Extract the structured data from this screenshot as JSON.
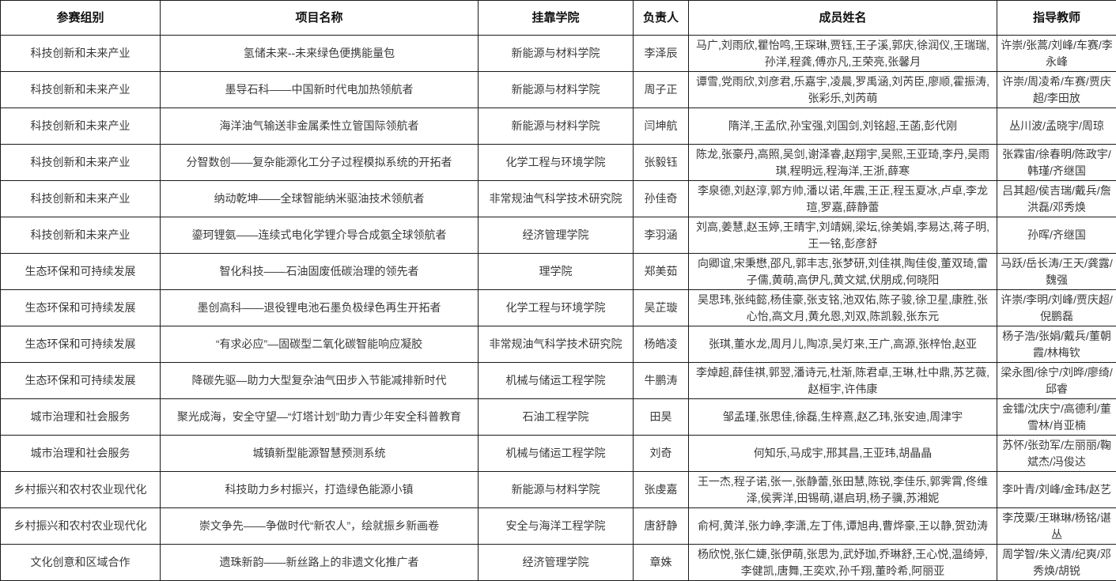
{
  "headers": [
    "参赛组别",
    "项目名称",
    "挂靠学院",
    "负责人",
    "成员姓名",
    "指导教师"
  ],
  "rows": [
    {
      "group": "科技创新和未来产业",
      "project": "氢储未来--未来绿色便携能量包",
      "college": "新能源与材料学院",
      "leader": "李泽辰",
      "members": "马广,刘雨欣,瞿怡鸣,王琛琳,贾钰,王子溪,郭庆,徐润仪,王瑞瑞,孙洋,程龚,傅亦凡,王荣亮,张馨月",
      "advisors": "许崇/张蒿/刘峰/车赛/李永峰"
    },
    {
      "group": "科技创新和未来产业",
      "project": "墨导石科——中国新时代电加热领航者",
      "college": "新能源与材料学院",
      "leader": "周子正",
      "members": "谭雪,党雨欣,刘彦君,乐嘉宇,凌晨,罗禹涵,刘芮臣,廖顺,霍振涛,张彩乐,刘芮萌",
      "advisors": "许崇/周凌希/车赛/贾庆超/李田放"
    },
    {
      "group": "科技创新和未来产业",
      "project": "海洋油气输送非金属柔性立管国际领航者",
      "college": "新能源与材料学院",
      "leader": "闫坤航",
      "members": "隋洋,王孟欣,孙宝强,刘国剑,刘铭超,王菡,彭代刚",
      "advisors": "丛川波/孟晓宇/周琼"
    },
    {
      "group": "科技创新和未来产业",
      "project": "分智数创——复杂能源化工分子过程模拟系统的开拓者",
      "college": "化学工程与环境学院",
      "leader": "张毅钰",
      "members": "陈龙,张豪丹,高照,吴剑,谢泽睿,赵翔宇,吴熙,王亚琦,李丹,吴雨琪,程明远,程海洋,王浙,薛寒",
      "advisors": "张霖宙/徐春明/陈政宇/韩瑾/齐继国"
    },
    {
      "group": "科技创新和未来产业",
      "project": "纳动乾坤——全球智能纳米驱油技术领航者",
      "college": "非常规油气科学技术研究院",
      "leader": "孙佳奇",
      "members": "李泉德,刘赵淳,郭方帅,潘以诺,年震,王正,程玉夏冰,卢卓,李龙瑄,罗嘉,薛静蕾",
      "advisors": "吕其超/侯吉瑞/戴兵/詹洪磊/邓秀焕"
    },
    {
      "group": "科技创新和未来产业",
      "project": "鎏珂锂氨——连续式电化学锂介导合成氨全球领航者",
      "college": "经济管理学院",
      "leader": "李羽涵",
      "members": "刘高,姜慧,赵玉婷,王晴宇,刘靖娴,梁坛,徐美娟,李易达,蒋子明,王一铭,彭彦舒",
      "advisors": "孙晖/齐继国"
    },
    {
      "group": "生态环保和可持续发展",
      "project": "智化科技——石油固废低碳治理的领先者",
      "college": "理学院",
      "leader": "郑美茹",
      "members": "向卿谊,宋秉懋,邵凡,郭丰志,张梦研,刘佳祺,陶佳俊,董双琦,雷子儒,黄萌,高伊凡,黄文斌,伏朋成,何晓阳",
      "advisors": "马跃/岳长涛/王天/龚露/魏强"
    },
    {
      "group": "生态环保和可持续发展",
      "project": "墨创高科——退役锂电池石墨负极绿色再生开拓者",
      "college": "化学工程与环境学院",
      "leader": "吴芷璇",
      "members": "吴思玮,张纯懿,杨佳豪,张支铭,池双佑,陈子骏,徐卫星,康胜,张心怡,高文月,黄允恩,刘双,陈凯毅,张东元",
      "advisors": "许崇/李明/刘峰/贾庆超/倪鹏磊"
    },
    {
      "group": "生态环保和可持续发展",
      "project": "“有求必应”—固碳型二氧化碳智能响应凝胶",
      "college": "非常规油气科学技术研究院",
      "leader": "杨皓凌",
      "members": "张琪,董水龙,周月儿,陶凉,吴灯来,王广,高源,张梓怡,赵亚",
      "advisors": "杨子浩/张娟/戴兵/董朝霞/林梅钦"
    },
    {
      "group": "生态环保和可持续发展",
      "project": "降碳先驱—助力大型复杂油气田步入节能减排新时代",
      "college": "机械与储运工程学院",
      "leader": "牛鹏涛",
      "members": "李焯超,薛佳祺,郭翌,潘诗元,杜渐,陈君卓,王琳,杜中鼎,苏艺薇,赵桓宇,许伟康",
      "advisors": "梁永图/徐宁/刘晔/廖绮/邱睿"
    },
    {
      "group": "城市治理和社会服务",
      "project": "聚光成海，安全守望—“灯塔计划”助力青少年安全科普教育",
      "college": "石油工程学院",
      "leader": "田昊",
      "members": "邹孟瑾,张思佳,徐磊,生梓熹,赵乙玮,张安迪,周津宇",
      "advisors": "金镭/沈庆宁/高德利/董雪林/肖亚楠"
    },
    {
      "group": "城市治理和社会服务",
      "project": "城镇新型能源智慧预测系统",
      "college": "机械与储运工程学院",
      "leader": "刘奇",
      "members": "何知乐,马成宇,邢其昌,王亚玮,胡晶晶",
      "advisors": "苏怀/张劲军/左丽丽/鞠斌杰/冯俊达"
    },
    {
      "group": "乡村振兴和农村农业现代化",
      "project": "科技助力乡村振兴，打造绿色能源小镇",
      "college": "新能源与材料学院",
      "leader": "张虔嘉",
      "members": "王一杰,程子诺,张一,张静蕾,张田慧,陈锐,李佳乐,郭霁霄,佟维泽,侯霁洋,田锡萌,谌启玥,杨子骥,苏湘妮",
      "advisors": "李叶青/刘峰/金玮/赵艺"
    },
    {
      "group": "乡村振兴和农村农业现代化",
      "project": "崇文争先——争做时代“新农人”，绘就振乡新画卷",
      "college": "安全与海洋工程学院",
      "leader": "唐舒静",
      "members": "俞柯,黄洋,张力峥,李潇,左丁伟,谭旭冉,曹烨豪,王以静,贺劲涛",
      "advisors": "李茂粟/王琳琳/杨铭/谌丛"
    },
    {
      "group": "文化创意和区域合作",
      "project": "遗珠新韵——新丝路上的非遗文化推广者",
      "college": "经济管理学院",
      "leader": "章姝",
      "members": "杨欣悦,张仁婕,张伊萌,张思为,武妤珈,乔琳舒,王心悦,温绮婷,李健凯,唐舞,王奕欢,孙千翔,董昤希,阿丽亚",
      "advisors": "周学智/朱义清/纪爽/邓秀焕/胡锐"
    }
  ]
}
